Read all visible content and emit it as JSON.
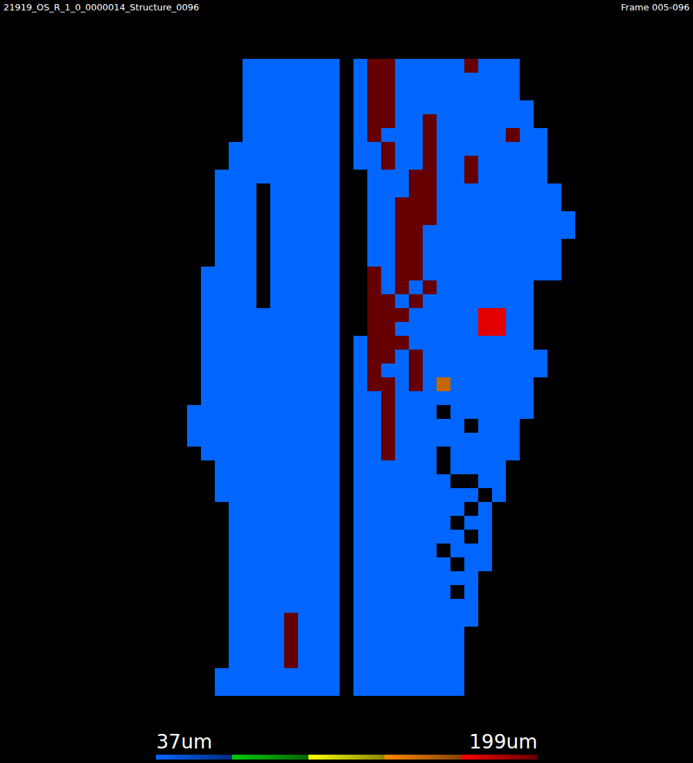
{
  "chart_data": {
    "type": "heatmap",
    "title": "21919_OS_R_1_0_0000014_Structure_0096",
    "subtitle": "Frame 005-096",
    "tick_labels": false,
    "cells": [
      [
        null,
        null,
        null,
        null,
        null,
        null,
        37,
        37,
        37,
        37,
        37,
        37,
        37,
        null,
        37,
        199,
        199,
        37,
        37,
        37,
        37,
        37,
        199,
        37,
        37,
        37,
        null,
        null,
        null,
        null
      ],
      [
        null,
        null,
        null,
        null,
        null,
        null,
        37,
        37,
        37,
        37,
        37,
        37,
        37,
        null,
        37,
        199,
        199,
        37,
        37,
        37,
        37,
        37,
        37,
        37,
        37,
        37,
        null,
        null,
        null,
        null
      ],
      [
        null,
        null,
        null,
        null,
        null,
        null,
        37,
        37,
        37,
        37,
        37,
        37,
        37,
        null,
        37,
        199,
        199,
        37,
        37,
        37,
        37,
        37,
        37,
        37,
        37,
        37,
        null,
        null,
        null,
        null
      ],
      [
        null,
        null,
        null,
        null,
        null,
        null,
        37,
        37,
        37,
        37,
        37,
        37,
        37,
        null,
        37,
        199,
        199,
        37,
        37,
        37,
        37,
        37,
        37,
        37,
        37,
        37,
        37,
        null,
        null,
        null
      ],
      [
        null,
        null,
        null,
        null,
        null,
        null,
        37,
        37,
        37,
        37,
        37,
        37,
        37,
        null,
        37,
        199,
        199,
        37,
        37,
        199,
        37,
        37,
        37,
        37,
        37,
        37,
        37,
        null,
        null,
        null
      ],
      [
        null,
        null,
        null,
        null,
        null,
        null,
        37,
        37,
        37,
        37,
        37,
        37,
        37,
        null,
        37,
        199,
        37,
        37,
        37,
        199,
        37,
        37,
        37,
        37,
        37,
        199,
        37,
        37,
        null,
        null
      ],
      [
        null,
        null,
        null,
        null,
        null,
        37,
        37,
        37,
        37,
        37,
        37,
        37,
        37,
        null,
        37,
        37,
        199,
        37,
        37,
        199,
        37,
        37,
        37,
        37,
        37,
        37,
        37,
        37,
        null,
        null
      ],
      [
        null,
        null,
        null,
        null,
        null,
        37,
        37,
        37,
        37,
        37,
        37,
        37,
        37,
        null,
        37,
        37,
        199,
        37,
        37,
        199,
        37,
        37,
        199,
        37,
        37,
        37,
        37,
        37,
        null,
        null
      ],
      [
        null,
        null,
        null,
        null,
        37,
        37,
        37,
        37,
        37,
        37,
        37,
        37,
        37,
        null,
        null,
        37,
        37,
        37,
        199,
        199,
        37,
        37,
        199,
        37,
        37,
        37,
        37,
        37,
        null,
        null
      ],
      [
        null,
        null,
        null,
        null,
        37,
        37,
        37,
        null,
        37,
        37,
        37,
        37,
        37,
        null,
        null,
        37,
        37,
        37,
        199,
        199,
        37,
        37,
        37,
        37,
        37,
        37,
        37,
        37,
        37,
        null
      ],
      [
        null,
        null,
        null,
        null,
        37,
        37,
        37,
        null,
        37,
        37,
        37,
        37,
        37,
        null,
        null,
        37,
        37,
        199,
        199,
        199,
        37,
        37,
        37,
        37,
        37,
        37,
        37,
        37,
        37,
        null
      ],
      [
        null,
        null,
        null,
        null,
        37,
        37,
        37,
        null,
        37,
        37,
        37,
        37,
        37,
        null,
        null,
        37,
        37,
        199,
        199,
        199,
        37,
        37,
        37,
        37,
        37,
        37,
        37,
        37,
        37,
        37
      ],
      [
        null,
        null,
        null,
        null,
        37,
        37,
        37,
        null,
        37,
        37,
        37,
        37,
        37,
        null,
        null,
        37,
        37,
        199,
        199,
        37,
        37,
        37,
        37,
        37,
        37,
        37,
        37,
        37,
        37,
        37
      ],
      [
        null,
        null,
        null,
        null,
        37,
        37,
        37,
        null,
        37,
        37,
        37,
        37,
        37,
        null,
        null,
        37,
        37,
        199,
        199,
        37,
        37,
        37,
        37,
        37,
        37,
        37,
        37,
        37,
        37,
        null
      ],
      [
        null,
        null,
        null,
        null,
        37,
        37,
        37,
        null,
        37,
        37,
        37,
        37,
        37,
        null,
        null,
        37,
        37,
        199,
        199,
        37,
        37,
        37,
        37,
        37,
        37,
        37,
        37,
        37,
        37,
        null
      ],
      [
        null,
        null,
        null,
        37,
        37,
        37,
        37,
        null,
        37,
        37,
        37,
        37,
        37,
        null,
        null,
        199,
        37,
        199,
        199,
        37,
        37,
        37,
        37,
        37,
        37,
        37,
        37,
        37,
        37,
        null
      ],
      [
        null,
        null,
        null,
        37,
        37,
        37,
        37,
        null,
        37,
        37,
        37,
        37,
        37,
        null,
        null,
        199,
        37,
        199,
        37,
        199,
        37,
        37,
        37,
        37,
        37,
        37,
        37,
        null,
        null,
        null
      ],
      [
        null,
        null,
        null,
        37,
        37,
        37,
        37,
        null,
        37,
        37,
        37,
        37,
        37,
        null,
        null,
        199,
        199,
        37,
        199,
        37,
        37,
        37,
        37,
        37,
        37,
        37,
        37,
        null,
        null,
        null
      ],
      [
        null,
        null,
        null,
        37,
        37,
        37,
        37,
        37,
        37,
        37,
        37,
        37,
        37,
        null,
        null,
        199,
        199,
        199,
        37,
        37,
        37,
        37,
        37,
        172,
        172,
        37,
        37,
        null,
        null,
        null
      ],
      [
        null,
        null,
        null,
        37,
        37,
        37,
        37,
        37,
        37,
        37,
        37,
        37,
        37,
        null,
        null,
        199,
        199,
        37,
        37,
        37,
        37,
        37,
        37,
        172,
        172,
        37,
        37,
        null,
        null,
        null
      ],
      [
        null,
        null,
        null,
        37,
        37,
        37,
        37,
        37,
        37,
        37,
        37,
        37,
        37,
        null,
        37,
        199,
        199,
        199,
        37,
        37,
        37,
        37,
        37,
        37,
        37,
        37,
        37,
        null,
        null,
        null
      ],
      [
        null,
        null,
        null,
        37,
        37,
        37,
        37,
        37,
        37,
        37,
        37,
        37,
        37,
        null,
        37,
        199,
        199,
        37,
        199,
        37,
        37,
        37,
        37,
        37,
        37,
        37,
        37,
        37,
        null,
        null
      ],
      [
        null,
        null,
        null,
        37,
        37,
        37,
        37,
        37,
        37,
        37,
        37,
        37,
        37,
        null,
        37,
        199,
        37,
        37,
        199,
        37,
        37,
        37,
        37,
        37,
        37,
        37,
        37,
        37,
        null,
        null
      ],
      [
        null,
        null,
        null,
        37,
        37,
        37,
        37,
        37,
        37,
        37,
        37,
        37,
        37,
        null,
        37,
        199,
        199,
        37,
        199,
        37,
        150,
        37,
        37,
        37,
        37,
        37,
        37,
        null,
        null,
        null
      ],
      [
        null,
        null,
        null,
        37,
        37,
        37,
        37,
        37,
        37,
        37,
        37,
        37,
        37,
        null,
        37,
        37,
        199,
        37,
        37,
        37,
        37,
        37,
        37,
        37,
        37,
        37,
        37,
        null,
        null,
        null
      ],
      [
        null,
        null,
        37,
        37,
        37,
        37,
        37,
        37,
        37,
        37,
        37,
        37,
        37,
        null,
        37,
        37,
        199,
        37,
        37,
        37,
        null,
        37,
        37,
        37,
        37,
        37,
        37,
        null,
        null,
        null
      ],
      [
        null,
        null,
        37,
        37,
        37,
        37,
        37,
        37,
        37,
        37,
        37,
        37,
        37,
        null,
        37,
        37,
        199,
        37,
        37,
        37,
        37,
        37,
        null,
        37,
        37,
        37,
        null,
        null,
        null,
        null
      ],
      [
        null,
        null,
        37,
        37,
        37,
        37,
        37,
        37,
        37,
        37,
        37,
        37,
        37,
        null,
        37,
        37,
        199,
        37,
        37,
        37,
        37,
        37,
        37,
        37,
        37,
        37,
        null,
        null,
        null,
        null
      ],
      [
        null,
        null,
        null,
        37,
        37,
        37,
        37,
        37,
        37,
        37,
        37,
        37,
        37,
        null,
        37,
        37,
        199,
        37,
        37,
        37,
        null,
        37,
        37,
        37,
        37,
        37,
        null,
        null,
        null,
        null
      ],
      [
        null,
        null,
        null,
        null,
        37,
        37,
        37,
        37,
        37,
        37,
        37,
        37,
        37,
        null,
        37,
        37,
        37,
        37,
        37,
        37,
        null,
        37,
        37,
        37,
        37,
        null,
        null,
        null,
        null,
        null
      ],
      [
        null,
        null,
        null,
        null,
        37,
        37,
        37,
        37,
        37,
        37,
        37,
        37,
        37,
        null,
        37,
        37,
        37,
        37,
        37,
        37,
        37,
        null,
        null,
        37,
        37,
        null,
        null,
        null,
        null,
        null
      ],
      [
        null,
        null,
        null,
        null,
        37,
        37,
        37,
        37,
        37,
        37,
        37,
        37,
        37,
        null,
        37,
        37,
        37,
        37,
        37,
        37,
        37,
        37,
        37,
        null,
        37,
        null,
        null,
        null,
        null,
        null
      ],
      [
        null,
        null,
        null,
        null,
        null,
        37,
        37,
        37,
        37,
        37,
        37,
        37,
        37,
        null,
        37,
        37,
        37,
        37,
        37,
        37,
        37,
        37,
        null,
        37,
        null,
        null,
        null,
        null,
        null,
        null
      ],
      [
        null,
        null,
        null,
        null,
        null,
        37,
        37,
        37,
        37,
        37,
        37,
        37,
        37,
        null,
        37,
        37,
        37,
        37,
        37,
        37,
        37,
        null,
        37,
        37,
        null,
        null,
        null,
        null,
        null,
        null
      ],
      [
        null,
        null,
        null,
        null,
        null,
        37,
        37,
        37,
        37,
        37,
        37,
        37,
        37,
        null,
        37,
        37,
        37,
        37,
        37,
        37,
        37,
        37,
        null,
        37,
        null,
        null,
        null,
        null,
        null,
        null
      ],
      [
        null,
        null,
        null,
        null,
        null,
        37,
        37,
        37,
        37,
        37,
        37,
        37,
        37,
        null,
        37,
        37,
        37,
        37,
        37,
        37,
        null,
        37,
        37,
        37,
        null,
        null,
        null,
        null,
        null,
        null
      ],
      [
        null,
        null,
        null,
        null,
        null,
        37,
        37,
        37,
        37,
        37,
        37,
        37,
        37,
        null,
        37,
        37,
        37,
        37,
        37,
        37,
        37,
        null,
        37,
        37,
        null,
        null,
        null,
        null,
        null,
        null
      ],
      [
        null,
        null,
        null,
        null,
        null,
        37,
        37,
        37,
        37,
        37,
        37,
        37,
        37,
        null,
        37,
        37,
        37,
        37,
        37,
        37,
        37,
        37,
        37,
        null,
        null,
        null,
        null,
        null,
        null,
        null
      ],
      [
        null,
        null,
        null,
        null,
        null,
        37,
        37,
        37,
        37,
        37,
        37,
        37,
        37,
        null,
        37,
        37,
        37,
        37,
        37,
        37,
        37,
        null,
        37,
        null,
        null,
        null,
        null,
        null,
        null,
        null
      ],
      [
        null,
        null,
        null,
        null,
        null,
        37,
        37,
        37,
        37,
        37,
        37,
        37,
        37,
        null,
        37,
        37,
        37,
        37,
        37,
        37,
        37,
        37,
        37,
        null,
        null,
        null,
        null,
        null,
        null,
        null
      ],
      [
        null,
        null,
        null,
        null,
        null,
        37,
        37,
        37,
        37,
        199,
        37,
        37,
        37,
        null,
        37,
        37,
        37,
        37,
        37,
        37,
        37,
        37,
        37,
        null,
        null,
        null,
        null,
        null,
        null,
        null
      ],
      [
        null,
        null,
        null,
        null,
        null,
        37,
        37,
        37,
        37,
        199,
        37,
        37,
        37,
        null,
        37,
        37,
        37,
        37,
        37,
        37,
        37,
        37,
        null,
        null,
        null,
        null,
        null,
        null,
        null,
        null
      ],
      [
        null,
        null,
        null,
        null,
        null,
        37,
        37,
        37,
        37,
        199,
        37,
        37,
        37,
        null,
        37,
        37,
        37,
        37,
        37,
        37,
        37,
        37,
        null,
        null,
        null,
        null,
        null,
        null,
        null,
        null
      ],
      [
        null,
        null,
        null,
        null,
        null,
        37,
        37,
        37,
        37,
        199,
        37,
        37,
        37,
        null,
        37,
        37,
        37,
        37,
        37,
        37,
        37,
        37,
        null,
        null,
        null,
        null,
        null,
        null,
        null,
        null
      ],
      [
        null,
        null,
        null,
        null,
        37,
        37,
        37,
        37,
        37,
        37,
        37,
        37,
        37,
        null,
        37,
        37,
        37,
        37,
        37,
        37,
        37,
        37,
        null,
        null,
        null,
        null,
        null,
        null,
        null,
        null
      ],
      [
        null,
        null,
        null,
        null,
        37,
        37,
        37,
        37,
        37,
        37,
        37,
        37,
        37,
        null,
        37,
        37,
        37,
        37,
        37,
        37,
        37,
        37,
        null,
        null,
        null,
        null,
        null,
        null,
        null,
        null
      ]
    ],
    "colorbar": {
      "range": [
        37,
        199
      ],
      "ticks": [
        {
          "value": 37,
          "label": "37um"
        },
        {
          "value": 199,
          "label": "199um"
        }
      ]
    }
  }
}
